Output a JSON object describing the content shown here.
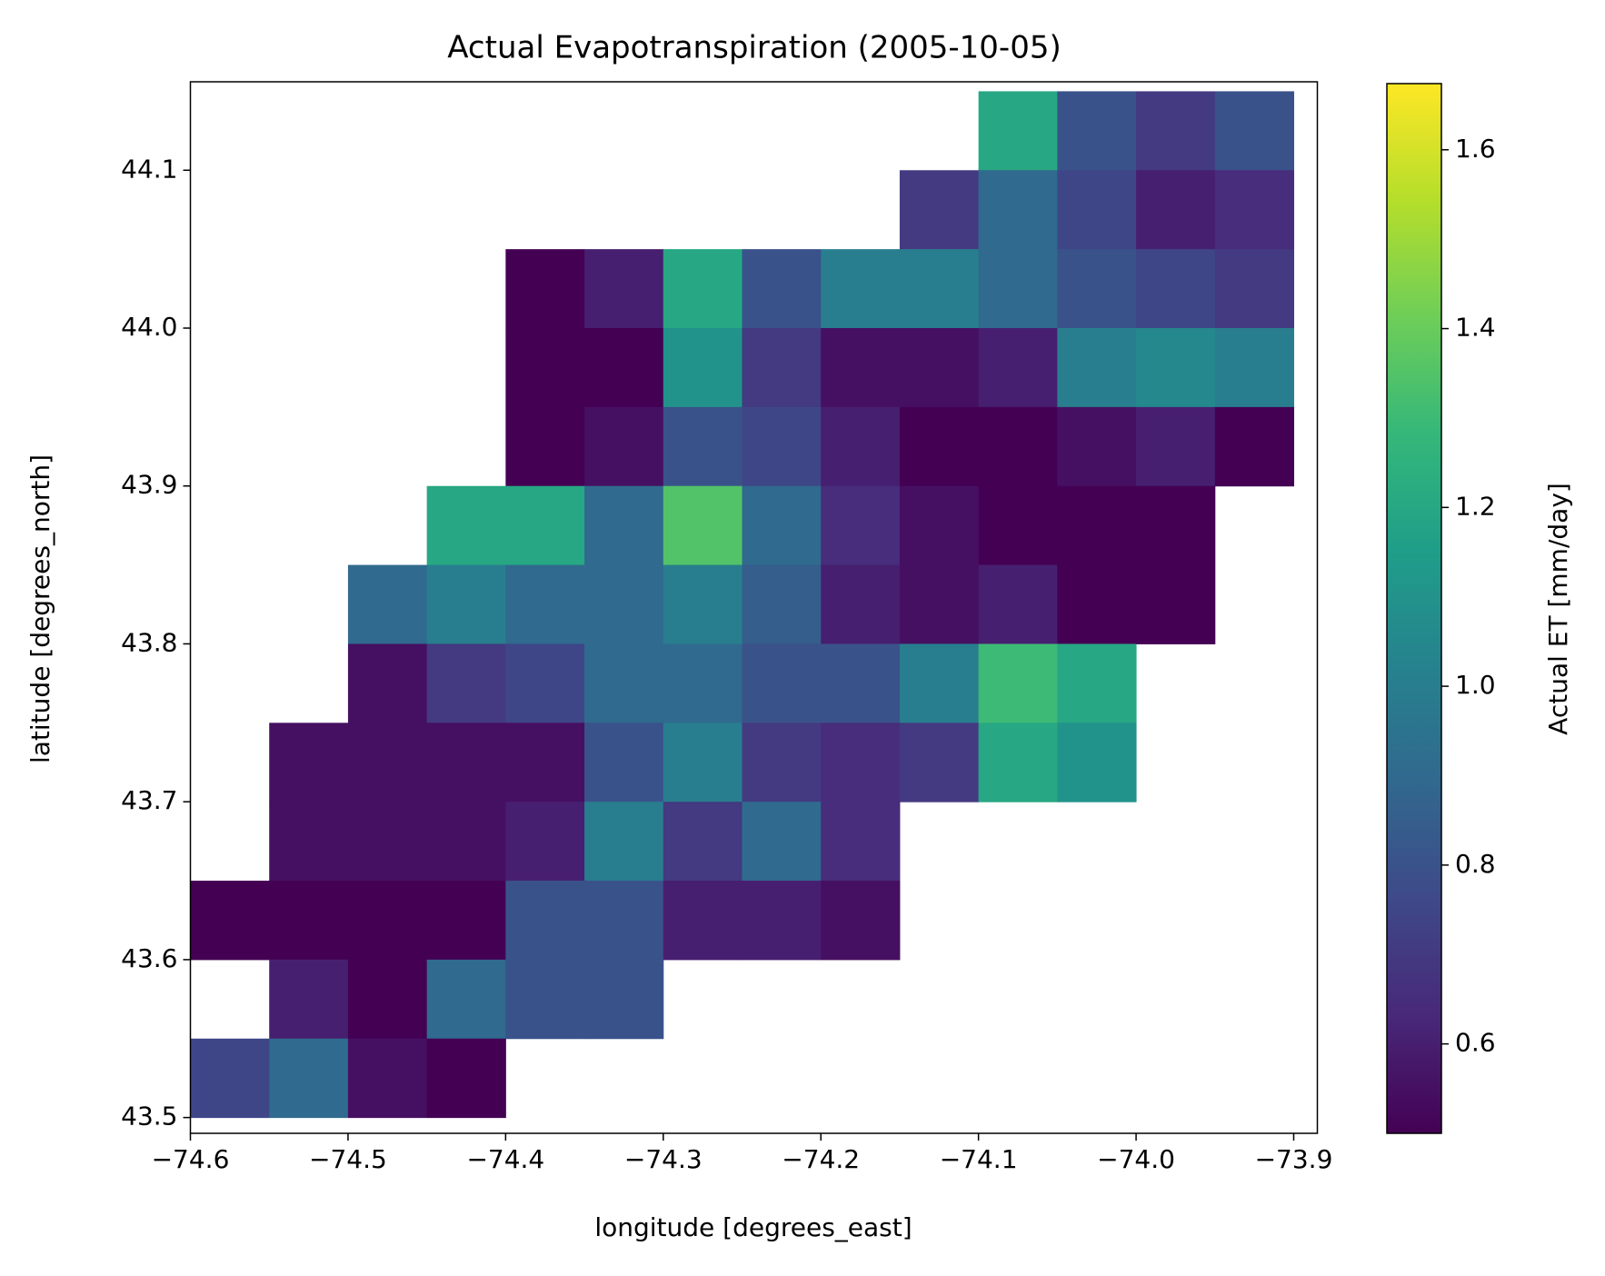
{
  "chart_data": {
    "type": "heatmap",
    "title": "Actual Evapotranspiration (2005-10-05)",
    "x_label": "longitude [degrees_east]",
    "y_label": "latitude [degrees_north]",
    "colorbar_label": "Actual ET [mm/day]",
    "colormap": "viridis",
    "x": [
      -74.575,
      -74.525,
      -74.475,
      -74.425,
      -74.375,
      -74.325,
      -74.275,
      -74.225,
      -74.175,
      -74.125,
      -74.075,
      -74.025,
      -73.975,
      -73.925
    ],
    "y": [
      44.125,
      44.075,
      44.025,
      43.975,
      43.925,
      43.875,
      43.825,
      43.775,
      43.725,
      43.675,
      43.625,
      43.575,
      43.525
    ],
    "cell_size": 0.05,
    "values": [
      [
        null,
        null,
        null,
        null,
        null,
        null,
        null,
        null,
        null,
        null,
        1.2,
        0.8,
        0.7,
        0.8
      ],
      [
        null,
        null,
        null,
        null,
        null,
        null,
        null,
        null,
        null,
        0.7,
        0.9,
        0.75,
        0.6,
        0.65
      ],
      [
        null,
        null,
        null,
        null,
        0.5,
        0.6,
        1.2,
        0.8,
        1.0,
        1.0,
        0.9,
        0.8,
        0.75,
        0.7
      ],
      [
        null,
        null,
        null,
        null,
        0.5,
        0.5,
        1.1,
        0.7,
        0.55,
        0.55,
        0.6,
        1.0,
        1.05,
        1.0
      ],
      [
        null,
        null,
        null,
        null,
        0.5,
        0.55,
        0.8,
        0.75,
        0.6,
        0.5,
        0.5,
        0.55,
        0.6,
        0.5
      ],
      [
        null,
        null,
        null,
        1.2,
        1.2,
        0.9,
        1.35,
        0.9,
        0.65,
        0.55,
        0.5,
        0.5,
        0.5,
        null
      ],
      [
        null,
        null,
        0.9,
        1.0,
        0.9,
        0.9,
        1.0,
        0.85,
        0.6,
        0.55,
        0.6,
        0.5,
        0.5,
        null
      ],
      [
        null,
        null,
        0.55,
        0.7,
        0.75,
        0.9,
        0.9,
        0.8,
        0.8,
        1.0,
        1.3,
        1.2,
        null,
        null
      ],
      [
        null,
        0.55,
        0.55,
        0.55,
        0.55,
        0.8,
        1.0,
        0.7,
        0.65,
        0.7,
        1.2,
        1.1,
        null,
        null
      ],
      [
        null,
        0.55,
        0.55,
        0.55,
        0.6,
        1.0,
        0.7,
        0.9,
        0.65,
        null,
        null,
        null,
        null,
        null
      ],
      [
        0.5,
        0.5,
        0.5,
        0.5,
        0.8,
        0.8,
        0.6,
        0.6,
        0.55,
        null,
        null,
        null,
        null,
        null
      ],
      [
        null,
        0.6,
        0.5,
        0.9,
        0.8,
        0.8,
        null,
        null,
        null,
        null,
        null,
        null,
        null,
        null
      ],
      [
        0.75,
        0.9,
        0.55,
        0.5,
        null,
        null,
        null,
        null,
        null,
        null,
        null,
        null,
        null,
        null
      ]
    ],
    "xlim": [
      -74.6,
      -73.885
    ],
    "ylim": [
      43.49,
      44.156
    ],
    "clim": [
      0.5,
      1.674
    ],
    "xticks": [
      {
        "value": -74.6,
        "label": "−74.6"
      },
      {
        "value": -74.5,
        "label": "−74.5"
      },
      {
        "value": -74.4,
        "label": "−74.4"
      },
      {
        "value": -74.3,
        "label": "−74.3"
      },
      {
        "value": -74.2,
        "label": "−74.2"
      },
      {
        "value": -74.1,
        "label": "−74.1"
      },
      {
        "value": -74.0,
        "label": "−74.0"
      },
      {
        "value": -73.9,
        "label": "−73.9"
      }
    ],
    "yticks": [
      43.5,
      43.6,
      43.7,
      43.8,
      43.9,
      {
        "value": 44.0,
        "label": "44.0"
      },
      44.1
    ],
    "cticks": [
      0.6,
      0.8,
      {
        "value": 1.0,
        "label": "1.0"
      },
      1.2,
      1.4,
      1.6
    ]
  }
}
